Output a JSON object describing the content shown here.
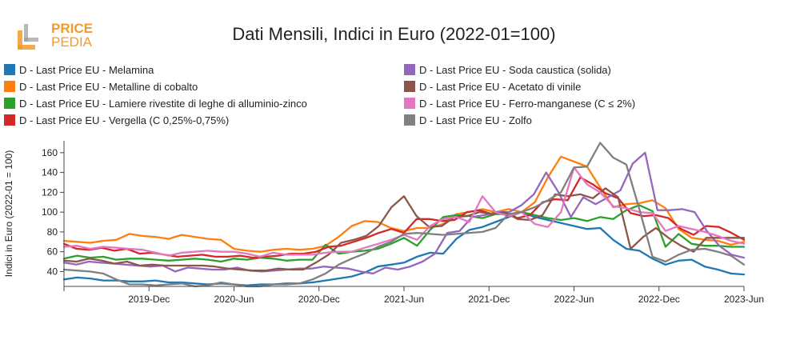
{
  "brand": {
    "line1": "PRICE",
    "line2": "PEDIA",
    "color": "#f29a2e"
  },
  "chart_data": {
    "type": "line",
    "title": "Dati Mensili, Indici in Euro (2022-01=100)",
    "xlabel": "",
    "ylabel": "Indici in Euro (2022-01 = 100)",
    "ylim": [
      25,
      172
    ],
    "yticks": [
      40,
      60,
      80,
      100,
      120,
      140,
      160
    ],
    "x_start": "2019-06",
    "x_end": "2023-06",
    "xticks": [
      "2019-Dec",
      "2020-Jun",
      "2020-Dec",
      "2021-Jun",
      "2021-Dec",
      "2022-Jun",
      "2022-Dec",
      "2023-Jun"
    ],
    "legend_position": "top",
    "grid": false,
    "series": [
      {
        "name": "D - Last Price EU - Melamina",
        "color": "#1f77b4",
        "values": [
          32,
          34,
          33,
          31,
          31,
          30,
          30,
          31,
          29,
          29,
          28,
          27,
          28,
          27,
          26,
          27,
          27,
          28,
          28,
          29,
          31,
          33,
          35,
          39,
          45,
          47,
          49,
          55,
          59,
          58,
          73,
          82,
          85,
          90,
          95,
          100,
          95,
          92,
          89,
          86,
          83,
          84,
          72,
          63,
          61,
          53,
          47,
          51,
          52,
          45,
          42,
          38,
          37
        ]
      },
      {
        "name": "D - Last Price EU - Metalline di cobalto",
        "color": "#ff7f0e",
        "values": [
          71,
          70,
          69,
          71,
          72,
          78,
          76,
          75,
          73,
          77,
          75,
          73,
          72,
          63,
          61,
          60,
          62,
          63,
          62,
          63,
          66,
          75,
          86,
          91,
          90,
          84,
          81,
          84,
          84,
          88,
          98,
          100,
          103,
          100,
          103,
          100,
          110,
          135,
          156,
          151,
          146,
          125,
          105,
          108,
          109,
          112,
          104,
          83,
          74,
          72,
          71,
          67,
          70
        ]
      },
      {
        "name": "D - Last Price EU - Lamiere rivestite di leghe di alluminio-zinco",
        "color": "#2ca02c",
        "values": [
          53,
          56,
          54,
          55,
          52,
          53,
          53,
          52,
          51,
          52,
          53,
          52,
          50,
          53,
          52,
          54,
          53,
          51,
          52,
          52,
          67,
          58,
          60,
          61,
          63,
          68,
          74,
          66,
          82,
          95,
          97,
          96,
          94,
          98,
          98,
          100,
          97,
          94,
          92,
          94,
          91,
          95,
          93,
          102,
          107,
          101,
          65,
          78,
          68,
          66,
          66,
          65,
          65
        ]
      },
      {
        "name": "D - Last Price EU - Vergella (C 0,25%-0,75%)",
        "color": "#d62728",
        "values": [
          68,
          63,
          62,
          64,
          61,
          63,
          58,
          59,
          57,
          55,
          56,
          57,
          55,
          55,
          56,
          54,
          55,
          56,
          58,
          58,
          60,
          65,
          66,
          70,
          74,
          79,
          83,
          79,
          93,
          93,
          91,
          92,
          100,
          102,
          98,
          100,
          94,
          97,
          110,
          113,
          112,
          135,
          128,
          119,
          114,
          99,
          96,
          97,
          94,
          83,
          77,
          86,
          85,
          79,
          72
        ]
      },
      {
        "name": "D - Last Price EU - Soda caustica (solida)",
        "color": "#9467bd",
        "values": [
          49,
          47,
          50,
          49,
          48,
          47,
          46,
          45,
          46,
          40,
          44,
          43,
          42,
          42,
          44,
          41,
          40,
          41,
          42,
          43,
          43,
          45,
          44,
          43,
          40,
          38,
          44,
          42,
          45,
          50,
          58,
          79,
          81,
          95,
          97,
          100,
          100,
          107,
          118,
          140,
          120,
          95,
          115,
          108,
          115,
          122,
          149,
          160,
          102,
          102,
          103,
          100,
          81,
          66,
          57,
          54
        ]
      },
      {
        "name": "D - Last Price EU - Acetato di vinile",
        "color": "#8c564b",
        "values": [
          51,
          50,
          53,
          51,
          48,
          50,
          46,
          47,
          46,
          46,
          46,
          46,
          45,
          43,
          42,
          41,
          41,
          43,
          42,
          42,
          49,
          57,
          69,
          72,
          76,
          86,
          105,
          116,
          96,
          85,
          86,
          95,
          96,
          100,
          98,
          100,
          93,
          92,
          97,
          118,
          116,
          118,
          114,
          124,
          115,
          63,
          75,
          84,
          74,
          66,
          60,
          74,
          74,
          74,
          74
        ]
      },
      {
        "name": "D - Last Price EU - Ferro-manganese (C ≤ 2%)",
        "color": "#e377c2",
        "values": [
          65,
          66,
          63,
          65,
          64,
          63,
          62,
          59,
          56,
          59,
          60,
          61,
          60,
          60,
          58,
          55,
          59,
          57,
          57,
          57,
          59,
          60,
          60,
          64,
          68,
          72,
          77,
          72,
          86,
          93,
          95,
          90,
          116,
          100,
          96,
          100,
          88,
          85,
          100,
          145,
          128,
          120,
          106,
          104,
          100,
          99,
          81,
          86,
          83,
          80,
          76,
          71,
          68
        ]
      },
      {
        "name": "D - Last Price EU - Zolfo",
        "color": "#7f7f7f",
        "values": [
          42,
          41,
          40,
          38,
          32,
          27,
          27,
          26,
          27,
          28,
          25,
          26,
          29,
          27,
          25,
          25,
          27,
          27,
          28,
          32,
          38,
          47,
          53,
          58,
          65,
          70,
          78,
          79,
          78,
          77,
          78,
          79,
          80,
          84,
          98,
          100,
          105,
          112,
          120,
          145,
          146,
          170,
          155,
          148,
          103,
          55,
          50,
          57,
          62,
          63,
          60,
          56,
          47
        ]
      }
    ]
  }
}
